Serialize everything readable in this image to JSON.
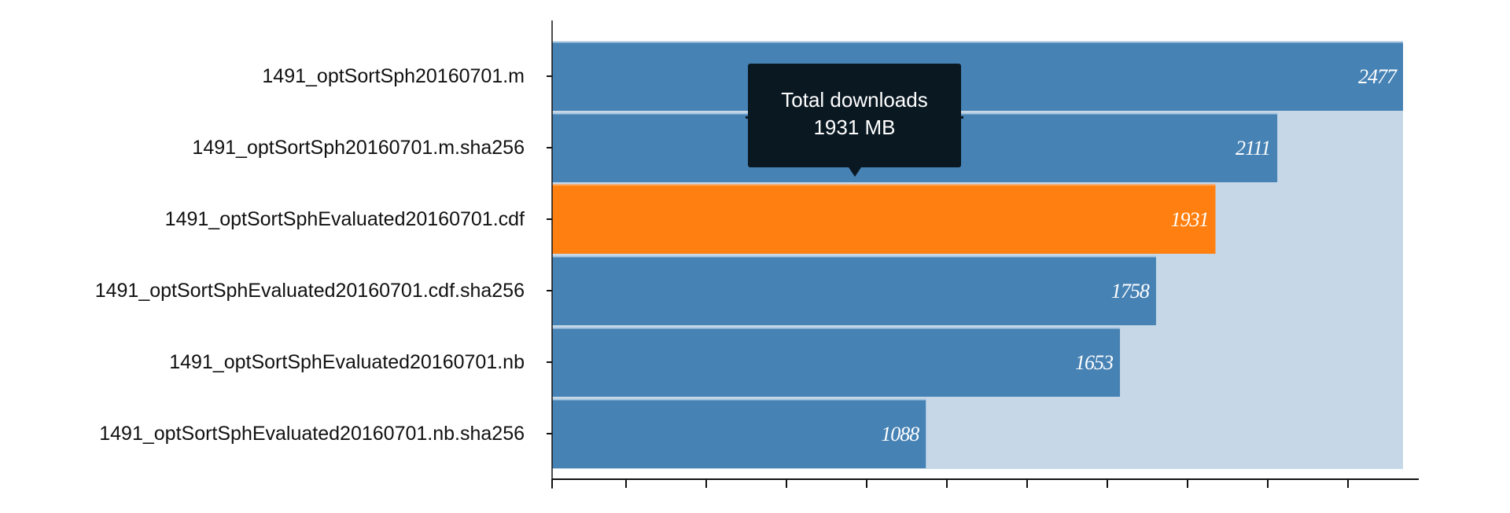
{
  "chart_data": {
    "type": "bar",
    "orientation": "horizontal",
    "categories": [
      "1491_optSortSph20160701.m",
      "1491_optSortSph20160701.m.sha256",
      "1491_optSortSphEvaluated20160701.cdf",
      "1491_optSortSphEvaluated20160701.cdf.sha256",
      "1491_optSortSphEvaluated20160701.nb",
      "1491_optSortSphEvaluated20160701.nb.sha256"
    ],
    "values": [
      2477,
      2111,
      1931,
      1758,
      1653,
      1088
    ],
    "xlim": [
      0,
      2477
    ],
    "highlight_index": 2,
    "grid": false,
    "colors": {
      "bar": "#4682b4",
      "highlight": "#ff8010",
      "background_bar": "#c6d8e8",
      "separator": "#a9c6df"
    }
  },
  "tooltip": {
    "title": "Total downloads",
    "value": "1931 MB"
  }
}
